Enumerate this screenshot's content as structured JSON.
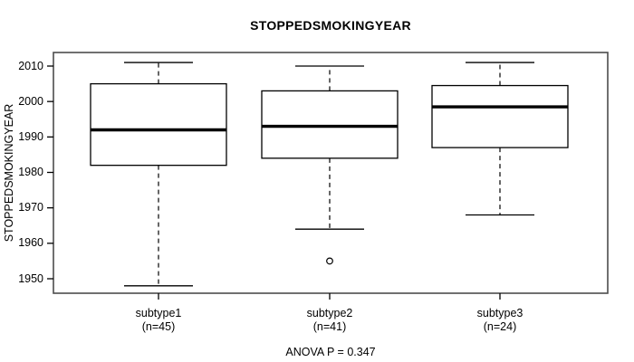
{
  "colors": {
    "foreground": "#000000",
    "background": "#ffffff",
    "frame": "#4d4d4d"
  },
  "chart_data": {
    "type": "boxplot",
    "title": "STOPPEDSMOKINGYEAR",
    "ylabel": "STOPPEDSMOKINGYEAR",
    "anova_note": "ANOVA P = 0.347",
    "ylim": [
      1946,
      2014
    ],
    "yticks": [
      1950,
      1960,
      1970,
      1980,
      1990,
      2000,
      2010
    ],
    "grid": false,
    "whisker_style": "dashed",
    "groups": [
      {
        "label": "subtype1",
        "n_label": "(n=45)",
        "n": 45,
        "whisker_low": 1948,
        "q1": 1982,
        "median": 1992,
        "q3": 2005,
        "whisker_high": 2011,
        "outliers": []
      },
      {
        "label": "subtype2",
        "n_label": "(n=41)",
        "n": 41,
        "whisker_low": 1964,
        "q1": 1984,
        "median": 1993,
        "q3": 2003,
        "whisker_high": 2010,
        "outliers": [
          1955
        ]
      },
      {
        "label": "subtype3",
        "n_label": "(n=24)",
        "n": 24,
        "whisker_low": 1968,
        "q1": 1987,
        "median": 1998.5,
        "q3": 2004.5,
        "whisker_high": 2011,
        "outliers": []
      }
    ]
  }
}
